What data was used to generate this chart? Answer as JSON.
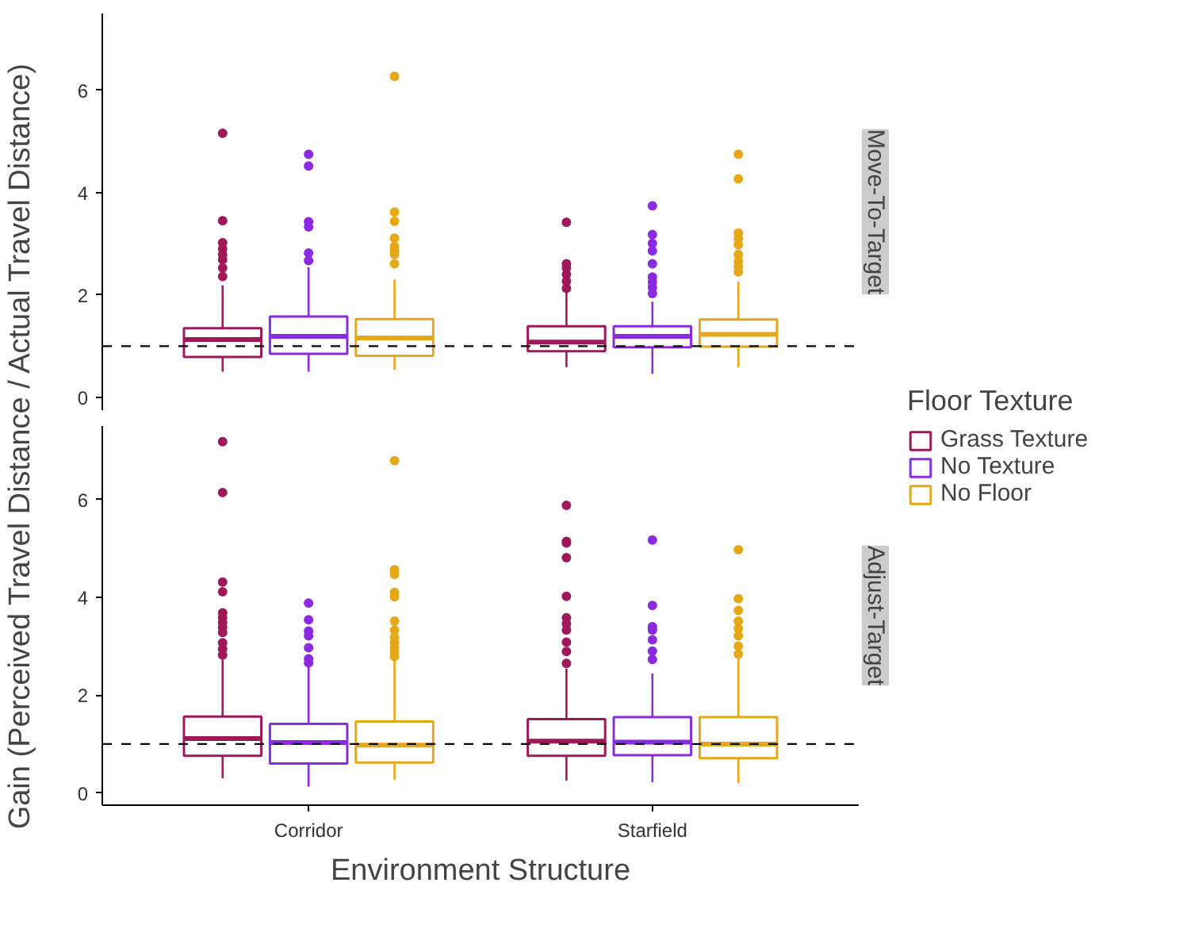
{
  "chart_data": [
    {
      "type": "box",
      "title": "Move-To-Target",
      "ylabel": "Gain (Perceived Travel Distance / Actual Travel Distance)",
      "legend_title": "Floor Texture",
      "legend": "right",
      "grid": false,
      "tick_labels": "y",
      "categories": [
        null,
        null
      ],
      "ylim": [
        -0.25,
        7.5
      ],
      "yticks": [
        0,
        2,
        4,
        6
      ],
      "ref_lines": [
        {
          "axis": "y",
          "value": 1,
          "line_style": "dashed",
          "color": "#000000"
        }
      ],
      "series": [
        {
          "name": "Grass Texture",
          "color": "#a0185a",
          "boxes": [
            {
              "low": 0.5,
              "q1": 0.79,
              "median": 1.13,
              "q3": 1.35,
              "high": 2.19,
              "outliers": [
                5.16,
                3.45,
                3.02,
                2.9,
                2.79,
                2.69,
                2.53,
                2.36
              ]
            },
            {
              "low": 0.59,
              "q1": 0.9,
              "median": 1.08,
              "q3": 1.39,
              "high": 2.1,
              "outliers": [
                3.42,
                2.61,
                2.53,
                2.4,
                2.27,
                2.13
              ]
            }
          ]
        },
        {
          "name": "No Texture",
          "color": "#8a2be2",
          "boxes": [
            {
              "low": 0.5,
              "q1": 0.85,
              "median": 1.19,
              "q3": 1.58,
              "high": 2.54,
              "outliers": [
                4.75,
                4.52,
                3.43,
                3.33,
                2.82,
                2.67
              ]
            },
            {
              "low": 0.46,
              "q1": 0.98,
              "median": 1.19,
              "q3": 1.39,
              "high": 1.87,
              "outliers": [
                3.74,
                3.18,
                3.01,
                2.86,
                2.61,
                2.35,
                2.25,
                2.15,
                2.03
              ]
            }
          ]
        },
        {
          "name": "No Floor",
          "color": "#e6a817",
          "boxes": [
            {
              "low": 0.54,
              "q1": 0.81,
              "median": 1.16,
              "q3": 1.53,
              "high": 2.3,
              "outliers": [
                6.27,
                3.62,
                3.44,
                3.11,
                2.95,
                2.86,
                2.79,
                2.61
              ]
            },
            {
              "low": 0.59,
              "q1": 0.99,
              "median": 1.23,
              "q3": 1.52,
              "high": 2.26,
              "outliers": [
                4.75,
                4.27,
                3.21,
                3.1,
                2.98,
                2.79,
                2.66,
                2.56,
                2.45
              ]
            }
          ]
        }
      ]
    },
    {
      "type": "box",
      "title": "Adjust-Target",
      "xlabel": "Environment Structure",
      "grid": false,
      "categories": [
        "Corridor",
        "Starfield"
      ],
      "ylim": [
        -0.25,
        7.5
      ],
      "yticks": [
        0,
        2,
        4,
        6
      ],
      "ref_lines": [
        {
          "axis": "y",
          "value": 1,
          "line_style": "dashed",
          "color": "#000000"
        }
      ],
      "series": [
        {
          "color": "#a0185a",
          "boxes": [
            {
              "low": 0.3,
              "q1": 0.76,
              "median": 1.11,
              "q3": 1.56,
              "high": 2.72,
              "outliers": [
                7.18,
                6.14,
                4.31,
                4.11,
                3.68,
                3.58,
                3.48,
                3.38,
                3.28,
                3.07,
                2.94,
                2.82
              ]
            },
            {
              "low": 0.25,
              "q1": 0.76,
              "median": 1.06,
              "q3": 1.51,
              "high": 2.54,
              "outliers": [
                5.88,
                5.14,
                5.11,
                4.81,
                4.02,
                3.58,
                3.46,
                3.33,
                3.08,
                2.89,
                2.65
              ]
            }
          ]
        },
        {
          "color": "#8a2be2",
          "boxes": [
            {
              "low": 0.13,
              "q1": 0.6,
              "median": 1.03,
              "q3": 1.41,
              "high": 2.6,
              "outliers": [
                3.88,
                3.54,
                3.31,
                3.21,
                2.97,
                2.74,
                2.66
              ]
            },
            {
              "low": 0.22,
              "q1": 0.77,
              "median": 1.04,
              "q3": 1.55,
              "high": 2.44,
              "outliers": [
                5.17,
                3.83,
                3.4,
                3.33,
                3.13,
                2.9,
                2.73
              ]
            }
          ]
        },
        {
          "color": "#e6a817",
          "boxes": [
            {
              "low": 0.27,
              "q1": 0.62,
              "median": 0.98,
              "q3": 1.46,
              "high": 2.72,
              "outliers": [
                6.79,
                4.56,
                4.47,
                4.1,
                4.01,
                3.51,
                3.33,
                3.18,
                3.07,
                2.97,
                2.87,
                2.79
              ]
            },
            {
              "low": 0.2,
              "q1": 0.71,
              "median": 1.0,
              "q3": 1.55,
              "high": 2.75,
              "outliers": [
                4.97,
                3.97,
                3.73,
                3.51,
                3.36,
                3.21,
                3.0,
                2.84
              ]
            }
          ]
        }
      ]
    }
  ]
}
